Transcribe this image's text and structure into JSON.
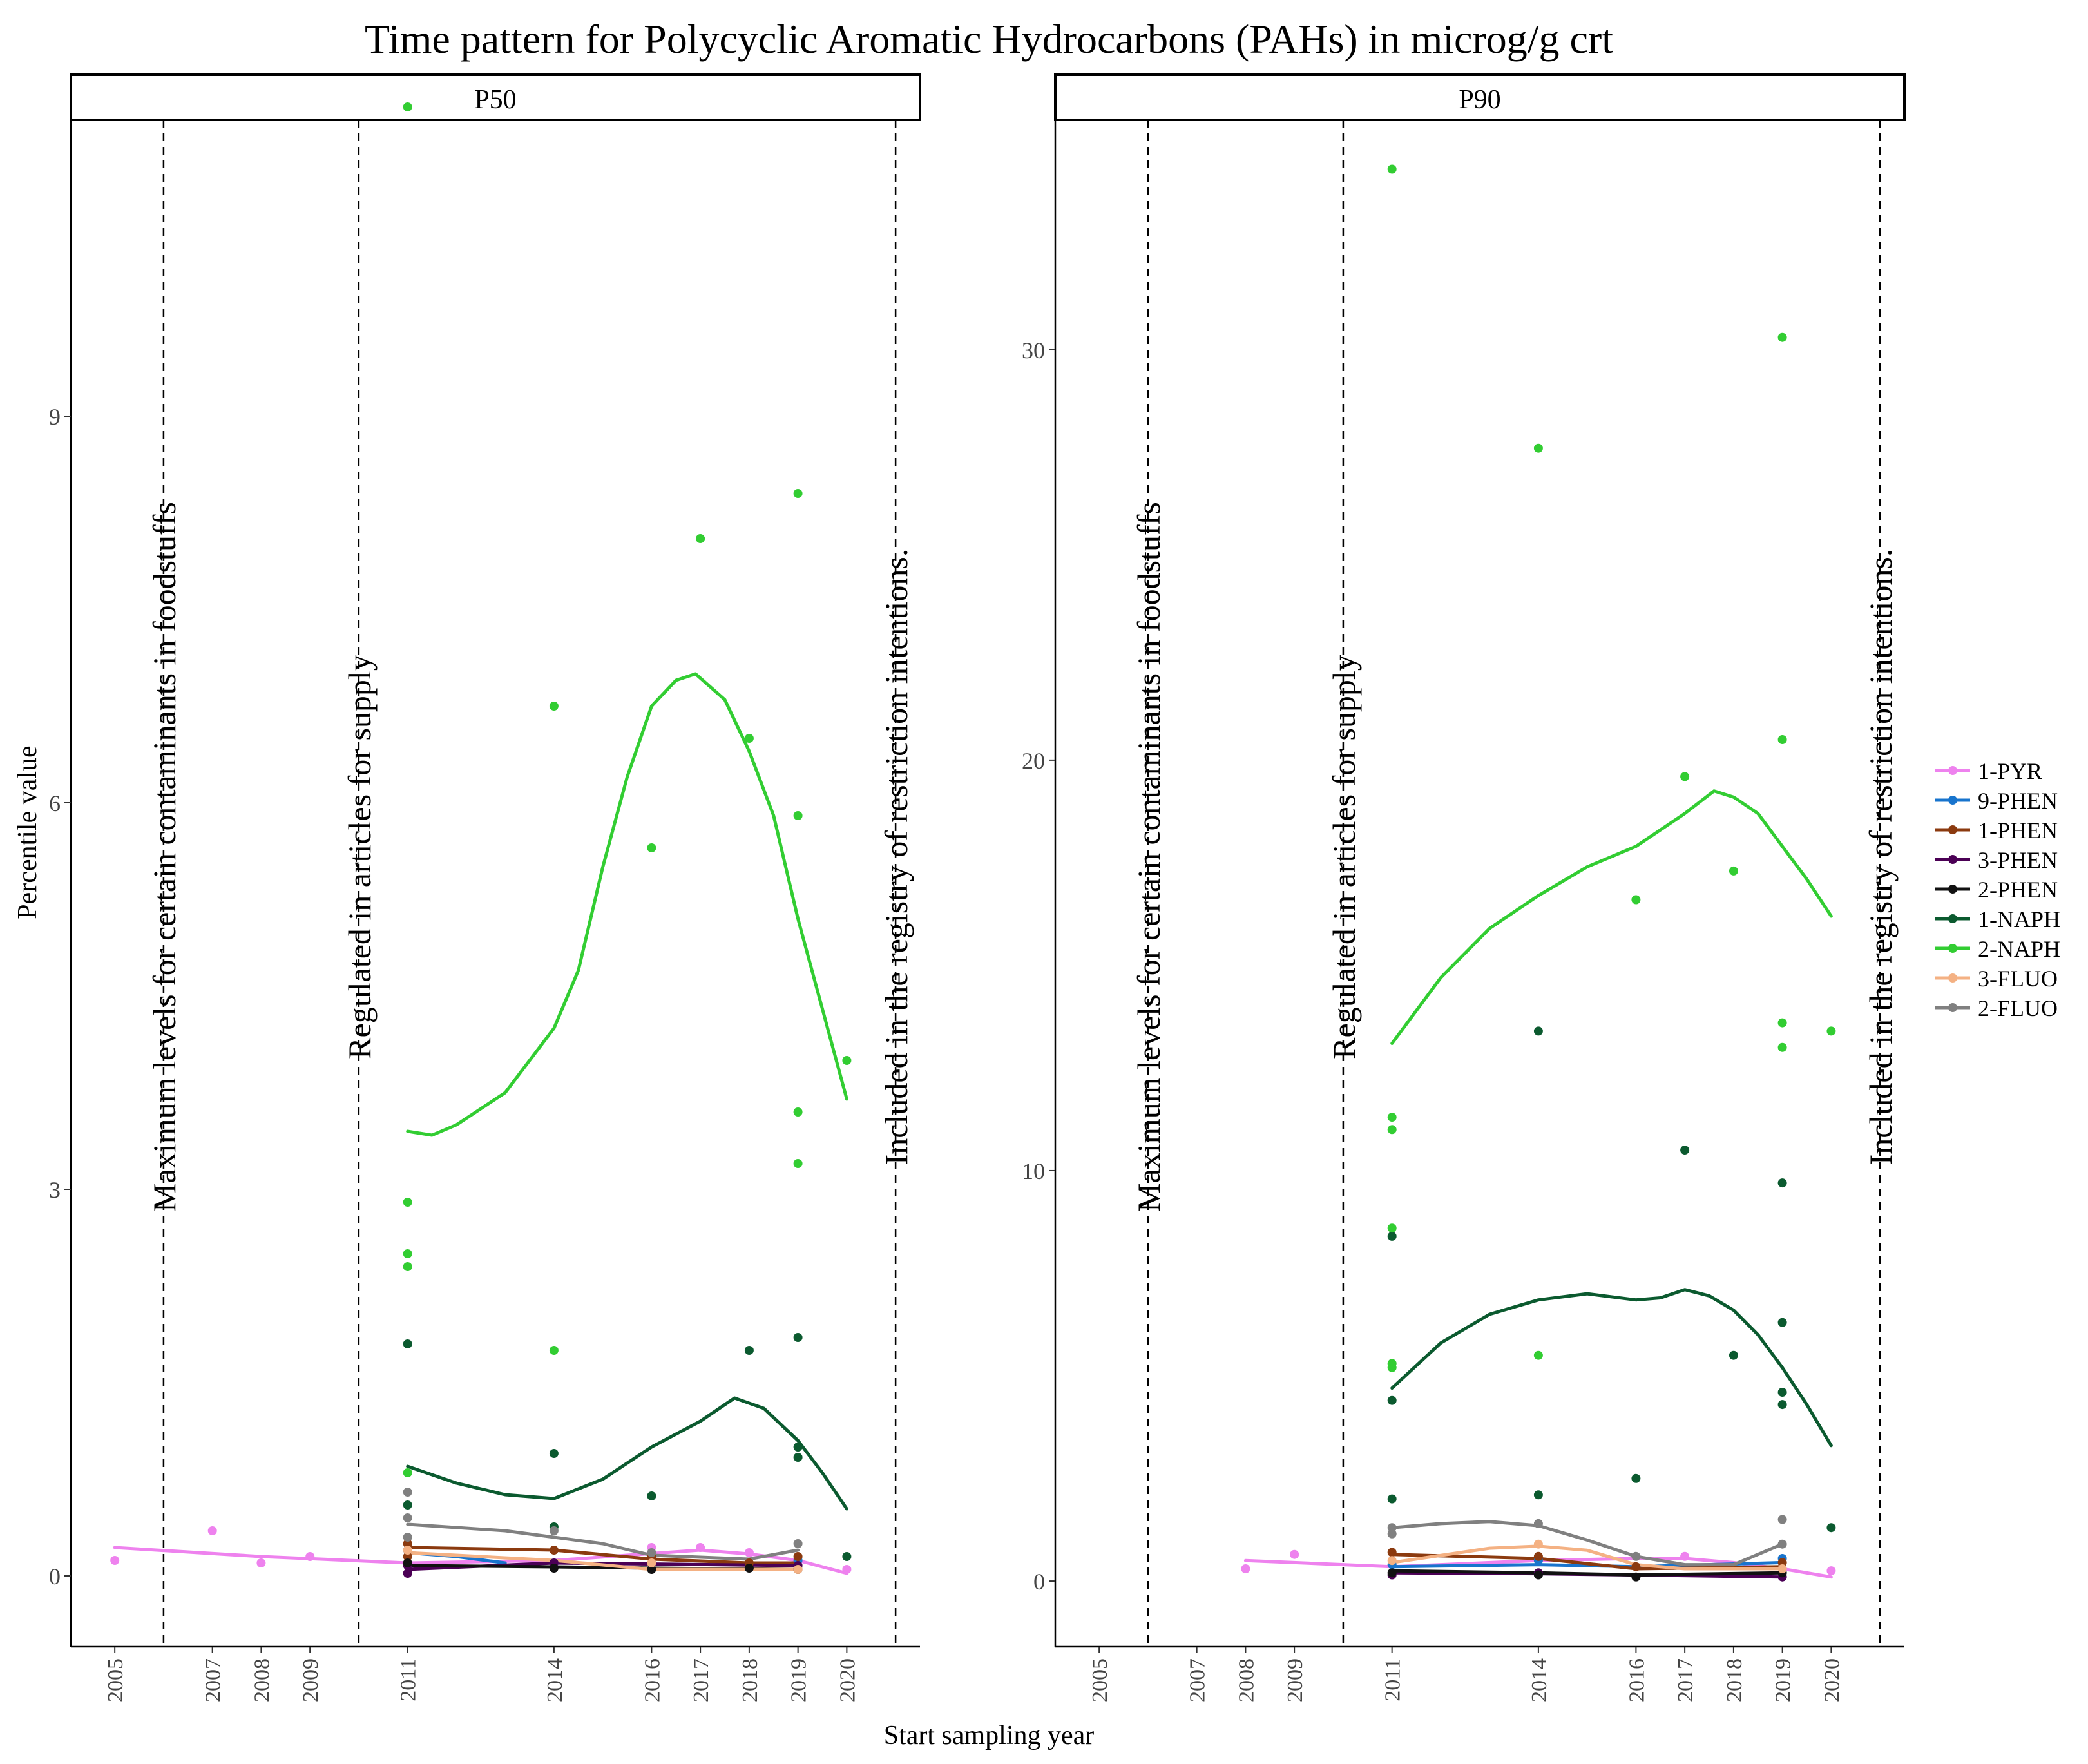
{
  "chart_data": {
    "type": "scatter",
    "title": "Time pattern for Polycyclic Aromatic Hydrocarbons (PAHs) in microg/g crt",
    "xlabel": "Start sampling year",
    "ylabel": "Percentile value",
    "x_ticks": [
      2005,
      2007,
      2008,
      2009,
      2011,
      2014,
      2016,
      2017,
      2018,
      2019,
      2020
    ],
    "xlim": [
      2004.1,
      2021.5
    ],
    "grid": false,
    "legend_position": "right",
    "legend": [
      "1-PYR",
      "9-PHEN",
      "1-PHEN",
      "3-PHEN",
      "2-PHEN",
      "1-NAPH",
      "2-NAPH",
      "3-FLUO",
      "2-FLUO"
    ],
    "series_colors": {
      "1-PYR": "#ee82ee",
      "9-PHEN": "#1874cd",
      "1-PHEN": "#8b3a0f",
      "3-PHEN": "#4b0055",
      "2-PHEN": "#111111",
      "1-NAPH": "#0b5a2f",
      "2-NAPH": "#32cd32",
      "3-FLUO": "#f4b183",
      "2-FLUO": "#808080"
    },
    "reference_lines": [
      {
        "x": 2006,
        "label": "Maximum levels for certain contaminants in foodstuffs"
      },
      {
        "x": 2010,
        "label": "Regulated in articles for supply"
      },
      {
        "x": 2021,
        "label": "Included in the registry of restriction intentions."
      }
    ],
    "panels": [
      {
        "name": "P50",
        "ylim": [
          -0.55,
          11.3
        ],
        "y_ticks": [
          0,
          3,
          6,
          9
        ],
        "points": {
          "1-PYR": [
            [
              2005,
              0.12
            ],
            [
              2007,
              0.35
            ],
            [
              2008,
              0.1
            ],
            [
              2009,
              0.15
            ],
            [
              2016,
              0.22
            ],
            [
              2017,
              0.22
            ],
            [
              2018,
              0.18
            ],
            [
              2020,
              0.05
            ]
          ],
          "9-PHEN": [
            [
              2011,
              0.2
            ],
            [
              2014,
              0.1
            ],
            [
              2019,
              0.12
            ]
          ],
          "1-PHEN": [
            [
              2011,
              0.25
            ],
            [
              2011,
              0.15
            ],
            [
              2014,
              0.2
            ],
            [
              2016,
              0.15
            ],
            [
              2018,
              0.1
            ],
            [
              2019,
              0.15
            ]
          ],
          "3-PHEN": [
            [
              2011,
              0.02
            ],
            [
              2011,
              0.08
            ],
            [
              2014,
              0.1
            ],
            [
              2019,
              0.08
            ]
          ],
          "2-PHEN": [
            [
              2011,
              0.1
            ],
            [
              2014,
              0.06
            ],
            [
              2016,
              0.05
            ],
            [
              2018,
              0.06
            ],
            [
              2019,
              0.05
            ]
          ],
          "1-NAPH": [
            [
              2011,
              1.8
            ],
            [
              2011,
              0.55
            ],
            [
              2014,
              0.95
            ],
            [
              2014,
              0.38
            ],
            [
              2016,
              0.62
            ],
            [
              2018,
              1.75
            ],
            [
              2019,
              1.85
            ],
            [
              2019,
              1.0
            ],
            [
              2019,
              0.92
            ],
            [
              2020,
              0.15
            ]
          ],
          "2-NAPH": [
            [
              2011,
              11.4
            ],
            [
              2011,
              2.9
            ],
            [
              2011,
              2.5
            ],
            [
              2011,
              2.4
            ],
            [
              2011,
              0.8
            ],
            [
              2014,
              6.75
            ],
            [
              2014,
              1.75
            ],
            [
              2016,
              5.65
            ],
            [
              2017,
              8.05
            ],
            [
              2018,
              6.5
            ],
            [
              2019,
              8.4
            ],
            [
              2019,
              5.9
            ],
            [
              2019,
              3.6
            ],
            [
              2019,
              3.2
            ],
            [
              2020,
              4.0
            ]
          ],
          "3-FLUO": [
            [
              2011,
              0.2
            ],
            [
              2016,
              0.1
            ],
            [
              2019,
              0.05
            ]
          ],
          "2-FLUO": [
            [
              2011,
              0.65
            ],
            [
              2011,
              0.45
            ],
            [
              2011,
              0.3
            ],
            [
              2014,
              0.35
            ],
            [
              2016,
              0.18
            ],
            [
              2019,
              0.25
            ]
          ]
        },
        "smooth": {
          "1-PYR": [
            [
              2005,
              0.22
            ],
            [
              2008,
              0.15
            ],
            [
              2011,
              0.1
            ],
            [
              2014,
              0.12
            ],
            [
              2017,
              0.2
            ],
            [
              2018,
              0.17
            ],
            [
              2019,
              0.12
            ],
            [
              2020,
              0.02
            ]
          ],
          "9-PHEN": [
            [
              2011,
              0.18
            ],
            [
              2012,
              0.15
            ],
            [
              2013,
              0.1
            ]
          ],
          "1-PHEN": [
            [
              2011,
              0.22
            ],
            [
              2014,
              0.2
            ],
            [
              2016,
              0.13
            ],
            [
              2018,
              0.1
            ],
            [
              2019,
              0.1
            ]
          ],
          "3-PHEN": [
            [
              2011,
              0.05
            ],
            [
              2014,
              0.1
            ],
            [
              2019,
              0.08
            ]
          ],
          "2-PHEN": [
            [
              2011,
              0.08
            ],
            [
              2014,
              0.07
            ],
            [
              2016,
              0.06
            ],
            [
              2019,
              0.05
            ]
          ],
          "1-NAPH": [
            [
              2011,
              0.85
            ],
            [
              2012,
              0.72
            ],
            [
              2013,
              0.63
            ],
            [
              2014,
              0.6
            ],
            [
              2015,
              0.75
            ],
            [
              2016,
              1.0
            ],
            [
              2017,
              1.2
            ],
            [
              2017.7,
              1.38
            ],
            [
              2018.3,
              1.3
            ],
            [
              2019,
              1.05
            ],
            [
              2019.5,
              0.8
            ],
            [
              2020,
              0.52
            ]
          ],
          "2-NAPH": [
            [
              2011,
              3.45
            ],
            [
              2011.5,
              3.42
            ],
            [
              2012,
              3.5
            ],
            [
              2013,
              3.75
            ],
            [
              2014,
              4.25
            ],
            [
              2014.5,
              4.7
            ],
            [
              2015,
              5.5
            ],
            [
              2015.5,
              6.2
            ],
            [
              2016,
              6.75
            ],
            [
              2016.5,
              6.95
            ],
            [
              2016.9,
              7.0
            ],
            [
              2017.5,
              6.8
            ],
            [
              2018,
              6.4
            ],
            [
              2018.5,
              5.9
            ],
            [
              2019,
              5.1
            ],
            [
              2019.5,
              4.4
            ],
            [
              2020,
              3.7
            ]
          ],
          "3-FLUO": [
            [
              2011,
              0.18
            ],
            [
              2014,
              0.12
            ],
            [
              2016,
              0.05
            ],
            [
              2019,
              0.05
            ]
          ],
          "2-FLUO": [
            [
              2011,
              0.4
            ],
            [
              2013,
              0.35
            ],
            [
              2015,
              0.25
            ],
            [
              2016,
              0.16
            ],
            [
              2018,
              0.13
            ],
            [
              2019,
              0.2
            ]
          ]
        }
      },
      {
        "name": "P90",
        "ylim": [
          -1.6,
          35.6
        ],
        "y_ticks": [
          0,
          10,
          20,
          30
        ],
        "points": {
          "1-PYR": [
            [
              2008,
              0.3
            ],
            [
              2009,
              0.65
            ],
            [
              2017,
              0.6
            ],
            [
              2020,
              0.25
            ]
          ],
          "9-PHEN": [
            [
              2011,
              0.4
            ],
            [
              2014,
              0.5
            ],
            [
              2019,
              0.55
            ]
          ],
          "1-PHEN": [
            [
              2011,
              0.7
            ],
            [
              2014,
              0.6
            ],
            [
              2016,
              0.35
            ],
            [
              2019,
              0.45
            ]
          ],
          "3-PHEN": [
            [
              2011,
              0.15
            ],
            [
              2014,
              0.2
            ],
            [
              2019,
              0.1
            ]
          ],
          "2-PHEN": [
            [
              2011,
              0.2
            ],
            [
              2014,
              0.15
            ],
            [
              2016,
              0.1
            ],
            [
              2019,
              0.2
            ]
          ],
          "1-NAPH": [
            [
              2011,
              8.4
            ],
            [
              2011,
              4.4
            ],
            [
              2011,
              2.0
            ],
            [
              2014,
              13.4
            ],
            [
              2014,
              2.1
            ],
            [
              2016,
              2.5
            ],
            [
              2017,
              10.5
            ],
            [
              2018,
              5.5
            ],
            [
              2019,
              9.7
            ],
            [
              2019,
              6.3
            ],
            [
              2019,
              4.6
            ],
            [
              2019,
              4.3
            ],
            [
              2020,
              1.3
            ]
          ],
          "2-NAPH": [
            [
              2011,
              34.4
            ],
            [
              2011,
              11.3
            ],
            [
              2011,
              11.0
            ],
            [
              2011,
              8.6
            ],
            [
              2011,
              5.3
            ],
            [
              2011,
              5.2
            ],
            [
              2014,
              27.6
            ],
            [
              2014,
              5.5
            ],
            [
              2016,
              16.6
            ],
            [
              2017,
              19.6
            ],
            [
              2018,
              17.3
            ],
            [
              2019,
              30.3
            ],
            [
              2019,
              20.5
            ],
            [
              2019,
              13.6
            ],
            [
              2019,
              13.0
            ],
            [
              2020,
              13.4
            ]
          ],
          "3-FLUO": [
            [
              2011,
              0.5
            ],
            [
              2014,
              0.9
            ],
            [
              2019,
              0.3
            ]
          ],
          "2-FLUO": [
            [
              2011,
              1.3
            ],
            [
              2011,
              1.15
            ],
            [
              2014,
              1.4
            ],
            [
              2016,
              0.6
            ],
            [
              2019,
              1.5
            ],
            [
              2019,
              0.9
            ]
          ]
        },
        "smooth": {
          "1-PYR": [
            [
              2008,
              0.5
            ],
            [
              2010,
              0.4
            ],
            [
              2011,
              0.35
            ],
            [
              2014,
              0.5
            ],
            [
              2016,
              0.55
            ],
            [
              2017,
              0.55
            ],
            [
              2018,
              0.45
            ],
            [
              2019,
              0.3
            ],
            [
              2020,
              0.1
            ]
          ],
          "9-PHEN": [
            [
              2011,
              0.35
            ],
            [
              2014,
              0.4
            ],
            [
              2016,
              0.35
            ],
            [
              2019,
              0.45
            ]
          ],
          "1-PHEN": [
            [
              2011,
              0.65
            ],
            [
              2014,
              0.55
            ],
            [
              2016,
              0.3
            ],
            [
              2019,
              0.35
            ]
          ],
          "3-PHEN": [
            [
              2011,
              0.2
            ],
            [
              2014,
              0.18
            ],
            [
              2019,
              0.1
            ]
          ],
          "2-PHEN": [
            [
              2011,
              0.25
            ],
            [
              2014,
              0.2
            ],
            [
              2016,
              0.15
            ],
            [
              2019,
              0.2
            ]
          ],
          "1-NAPH": [
            [
              2011,
              4.7
            ],
            [
              2012,
              5.8
            ],
            [
              2013,
              6.5
            ],
            [
              2014,
              6.85
            ],
            [
              2015,
              7.0
            ],
            [
              2016,
              6.85
            ],
            [
              2016.5,
              6.9
            ],
            [
              2017,
              7.1
            ],
            [
              2017.5,
              6.95
            ],
            [
              2018,
              6.6
            ],
            [
              2018.5,
              6.0
            ],
            [
              2019,
              5.2
            ],
            [
              2019.5,
              4.3
            ],
            [
              2020,
              3.3
            ]
          ],
          "2-NAPH": [
            [
              2011,
              13.1
            ],
            [
              2012,
              14.7
            ],
            [
              2013,
              15.9
            ],
            [
              2014,
              16.7
            ],
            [
              2015,
              17.4
            ],
            [
              2016,
              17.9
            ],
            [
              2017,
              18.7
            ],
            [
              2017.6,
              19.25
            ],
            [
              2018,
              19.1
            ],
            [
              2018.5,
              18.7
            ],
            [
              2019,
              17.9
            ],
            [
              2019.5,
              17.1
            ],
            [
              2020,
              16.2
            ]
          ],
          "3-FLUO": [
            [
              2011,
              0.45
            ],
            [
              2013,
              0.8
            ],
            [
              2014,
              0.85
            ],
            [
              2015,
              0.75
            ],
            [
              2016,
              0.4
            ],
            [
              2017,
              0.3
            ],
            [
              2019,
              0.3
            ]
          ],
          "2-FLUO": [
            [
              2011,
              1.3
            ],
            [
              2012,
              1.4
            ],
            [
              2013,
              1.45
            ],
            [
              2014,
              1.35
            ],
            [
              2015,
              1.0
            ],
            [
              2016,
              0.6
            ],
            [
              2017,
              0.4
            ],
            [
              2018,
              0.4
            ],
            [
              2019,
              0.9
            ]
          ]
        }
      }
    ]
  }
}
